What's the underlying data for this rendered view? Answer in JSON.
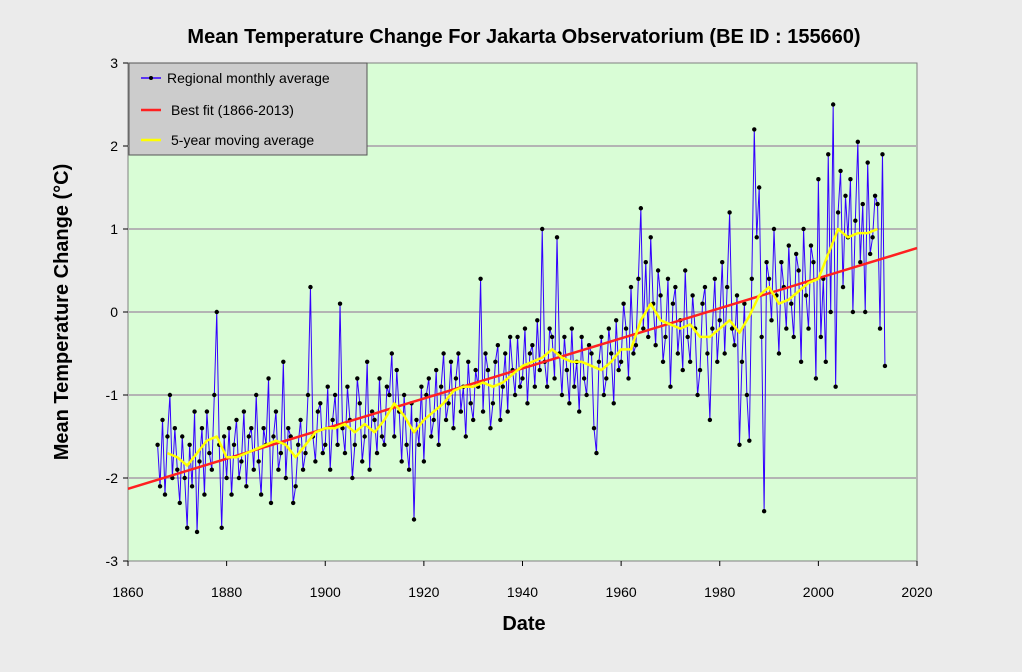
{
  "chart_data": {
    "type": "line",
    "title": "Mean Temperature Change For Jakarta Observatorium (BE ID : 155660)",
    "xlabel": "Date",
    "ylabel": "Mean  Temperature  Change  (°C)",
    "xlim": [
      1860,
      2020
    ],
    "ylim": [
      -3,
      3
    ],
    "xticks": [
      "1860",
      "1880",
      "1900",
      "1920",
      "1940",
      "1960",
      "1980",
      "2000",
      "2020"
    ],
    "yticks": [
      "-3",
      "-2",
      "-1",
      "0",
      "1",
      "2",
      "3"
    ],
    "grid": "horizontal",
    "legend_position": "top-left",
    "colors": {
      "background": "#ebebeb",
      "plot_background": "#d9fdd6",
      "monthly": "#3300ff",
      "markers": "#000000",
      "best_fit": "#ff2020",
      "moving_average": "#ffff00",
      "grid": "#b4b4b4",
      "legend_bg": "#cccccc"
    },
    "legend": [
      {
        "label": "Regional monthly average"
      },
      {
        "label": "Best fit (1866-2013)"
      },
      {
        "label": "5-year moving average"
      }
    ],
    "series": [
      {
        "name": "Regional monthly average",
        "x_start": 1866,
        "x_step": 0.5,
        "values": [
          -1.6,
          -2.1,
          -1.3,
          -2.2,
          -1.5,
          -1.0,
          -2.0,
          -1.4,
          -1.9,
          -2.3,
          -1.5,
          -2.0,
          -2.6,
          -1.6,
          -2.1,
          -1.2,
          -2.65,
          -1.8,
          -1.4,
          -2.2,
          -1.2,
          -1.7,
          -1.9,
          -1.0,
          0.0,
          -1.6,
          -2.6,
          -1.5,
          -2.0,
          -1.4,
          -2.2,
          -1.6,
          -1.3,
          -2.0,
          -1.8,
          -1.2,
          -2.1,
          -1.5,
          -1.4,
          -1.9,
          -1.0,
          -1.8,
          -2.2,
          -1.4,
          -1.6,
          -0.8,
          -2.3,
          -1.5,
          -1.2,
          -1.9,
          -1.7,
          -0.6,
          -2.0,
          -1.4,
          -1.5,
          -2.3,
          -2.1,
          -1.6,
          -1.3,
          -1.9,
          -1.7,
          -1.0,
          0.3,
          -1.5,
          -1.8,
          -1.2,
          -1.1,
          -1.7,
          -1.6,
          -0.9,
          -1.9,
          -1.3,
          -1.0,
          -1.6,
          0.1,
          -1.4,
          -1.7,
          -0.9,
          -1.3,
          -2.0,
          -1.6,
          -0.8,
          -1.1,
          -1.8,
          -1.5,
          -0.6,
          -1.9,
          -1.2,
          -1.3,
          -1.7,
          -0.8,
          -1.5,
          -1.6,
          -0.9,
          -1.0,
          -0.5,
          -1.5,
          -0.7,
          -1.2,
          -1.8,
          -1.0,
          -1.6,
          -1.9,
          -1.1,
          -2.5,
          -1.3,
          -1.6,
          -0.9,
          -1.8,
          -1.0,
          -0.8,
          -1.5,
          -1.3,
          -0.7,
          -1.6,
          -0.9,
          -0.5,
          -1.3,
          -1.1,
          -0.6,
          -1.4,
          -0.8,
          -0.5,
          -1.2,
          -0.9,
          -1.5,
          -0.6,
          -1.1,
          -1.3,
          -0.7,
          -0.9,
          0.4,
          -1.2,
          -0.5,
          -0.7,
          -1.4,
          -1.1,
          -0.6,
          -0.4,
          -1.3,
          -0.9,
          -0.5,
          -1.2,
          -0.3,
          -0.7,
          -1.0,
          -0.3,
          -0.9,
          -0.8,
          -0.2,
          -1.1,
          -0.5,
          -0.4,
          -0.9,
          -0.1,
          -0.7,
          1.0,
          -0.6,
          -0.9,
          -0.2,
          -0.3,
          -0.8,
          0.9,
          -0.5,
          -1.0,
          -0.3,
          -0.7,
          -1.1,
          -0.2,
          -0.9,
          -0.6,
          -1.2,
          -0.3,
          -0.8,
          -1.0,
          -0.4,
          -0.5,
          -1.4,
          -1.7,
          -0.6,
          -0.3,
          -1.0,
          -0.8,
          -0.2,
          -0.5,
          -1.1,
          -0.1,
          -0.7,
          -0.6,
          0.1,
          -0.2,
          -0.8,
          0.3,
          -0.5,
          -0.4,
          0.4,
          1.25,
          -0.2,
          0.6,
          -0.3,
          0.9,
          0.1,
          -0.4,
          0.5,
          0.2,
          -0.6,
          -0.3,
          0.4,
          -0.9,
          0.1,
          0.3,
          -0.5,
          -0.1,
          -0.7,
          0.5,
          -0.3,
          -0.6,
          0.2,
          -0.2,
          -1.0,
          -0.7,
          0.1,
          0.3,
          -0.5,
          -1.3,
          -0.2,
          0.4,
          -0.6,
          -0.1,
          0.6,
          -0.5,
          0.3,
          1.2,
          -0.2,
          -0.4,
          0.2,
          -1.6,
          -0.6,
          0.1,
          -1.0,
          -1.55,
          0.4,
          2.2,
          0.9,
          1.5,
          -0.3,
          -2.4,
          0.6,
          0.4,
          -0.1,
          1.0,
          0.2,
          -0.5,
          0.6,
          0.3,
          -0.2,
          0.8,
          0.1,
          -0.3,
          0.7,
          0.5,
          -0.6,
          1.0,
          0.2,
          -0.2,
          0.8,
          0.6,
          -0.8,
          1.6,
          -0.3,
          0.4,
          -0.6,
          1.9,
          0.0,
          2.5,
          -0.9,
          1.2,
          1.7,
          0.3,
          1.4,
          0.9,
          1.6,
          0.0,
          1.1,
          2.05,
          0.6,
          1.3,
          0.0,
          1.8,
          0.7,
          0.9,
          1.4,
          1.3,
          -0.2,
          1.9,
          -0.65
        ]
      },
      {
        "name": "Best fit (1866-2013)",
        "x": [
          1860,
          2020
        ],
        "y": [
          -2.13,
          0.77
        ]
      },
      {
        "name": "5-year moving average",
        "x": [
          1868,
          1870,
          1872,
          1874,
          1876,
          1878,
          1880,
          1882,
          1884,
          1886,
          1888,
          1890,
          1892,
          1894,
          1896,
          1898,
          1900,
          1902,
          1904,
          1906,
          1908,
          1910,
          1912,
          1914,
          1916,
          1918,
          1920,
          1922,
          1924,
          1926,
          1928,
          1930,
          1932,
          1934,
          1936,
          1938,
          1940,
          1942,
          1944,
          1946,
          1948,
          1950,
          1952,
          1954,
          1956,
          1958,
          1960,
          1962,
          1964,
          1966,
          1968,
          1970,
          1972,
          1974,
          1976,
          1978,
          1980,
          1982,
          1984,
          1986,
          1988,
          1990,
          1992,
          1994,
          1996,
          1998,
          2000,
          2002,
          2004,
          2006,
          2008,
          2010,
          2012
        ],
        "y": [
          -1.7,
          -1.75,
          -1.85,
          -1.7,
          -1.55,
          -1.5,
          -1.75,
          -1.75,
          -1.7,
          -1.65,
          -1.6,
          -1.55,
          -1.6,
          -1.75,
          -1.6,
          -1.45,
          -1.4,
          -1.4,
          -1.35,
          -1.45,
          -1.35,
          -1.45,
          -1.3,
          -1.1,
          -1.25,
          -1.45,
          -1.3,
          -1.2,
          -1.1,
          -0.95,
          -0.9,
          -0.9,
          -0.85,
          -0.9,
          -0.85,
          -0.75,
          -0.65,
          -0.6,
          -0.55,
          -0.45,
          -0.55,
          -0.6,
          -0.6,
          -0.65,
          -0.7,
          -0.6,
          -0.45,
          -0.45,
          -0.1,
          0.1,
          -0.1,
          -0.15,
          -0.2,
          -0.15,
          -0.3,
          -0.3,
          -0.2,
          -0.1,
          -0.25,
          -0.05,
          0.2,
          0.3,
          0.1,
          0.15,
          0.25,
          0.35,
          0.4,
          0.7,
          1.0,
          0.9,
          0.95,
          0.95,
          1.0
        ]
      }
    ]
  }
}
